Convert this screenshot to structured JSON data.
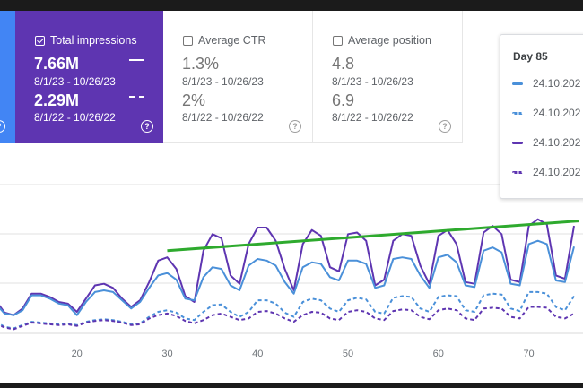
{
  "metrics": {
    "impressions": {
      "title": "Total impressions",
      "checked": true,
      "current_value": "7.66M",
      "current_range": "8/1/23 - 10/26/23",
      "previous_value": "2.29M",
      "previous_range": "8/1/22 - 10/26/22",
      "color": "#5e35b1"
    },
    "ctr": {
      "title": "Average CTR",
      "checked": false,
      "current_value": "1.3%",
      "current_range": "8/1/23 - 10/26/23",
      "previous_value": "2%",
      "previous_range": "8/1/22 - 10/26/22"
    },
    "position": {
      "title": "Average position",
      "checked": false,
      "current_value": "4.8",
      "current_range": "8/1/23 - 10/26/23",
      "previous_value": "6.9",
      "previous_range": "8/1/22 - 10/26/22"
    },
    "help_icon": "?"
  },
  "tooltip": {
    "title": "Day 85",
    "rows": [
      {
        "date": "24.10.202",
        "style": "solid",
        "color": "#4a90d9",
        "icon": "solid-line-icon"
      },
      {
        "date": "24.10.202",
        "style": "dashed",
        "color": "#4a90d9",
        "icon": "dashed-line-icon"
      },
      {
        "date": "24.10.202",
        "style": "solid",
        "color": "#5e35b1",
        "icon": "solid-line-icon"
      },
      {
        "date": "24.10.202",
        "style": "dashed",
        "color": "#5e35b1",
        "icon": "dashed-line-icon"
      }
    ]
  },
  "colors": {
    "clicks": "#4285f4",
    "impressions": "#5e35b1",
    "trend": "#2eaa2e",
    "grid": "#e0e0e0"
  },
  "chart_data": {
    "type": "line",
    "x_ticks": [
      20,
      30,
      40,
      50,
      60,
      70
    ],
    "xlim": [
      11,
      75.5
    ],
    "ylim": [
      0,
      180
    ],
    "grid": true,
    "series": [
      {
        "style": "solid",
        "color": "#5e35b1",
        "x": [
          11,
          12,
          13,
          14,
          15,
          16,
          17,
          18,
          19,
          20,
          21,
          22,
          23,
          24,
          25,
          26,
          27,
          28,
          29,
          30,
          31,
          32,
          33,
          34,
          35,
          36,
          37,
          38,
          39,
          40,
          41,
          42,
          43,
          44,
          45,
          46,
          47,
          48,
          49,
          50,
          51,
          52,
          53,
          54,
          55,
          56,
          57,
          58,
          59,
          60,
          61,
          62,
          63,
          64,
          65,
          66,
          67,
          68,
          69,
          70,
          71,
          72,
          73,
          74,
          75
        ],
        "y": [
          40,
          25,
          22,
          30,
          48,
          48,
          44,
          38,
          36,
          26,
          42,
          58,
          60,
          55,
          42,
          32,
          40,
          62,
          88,
          92,
          78,
          45,
          38,
          100,
          120,
          115,
          70,
          60,
          108,
          128,
          128,
          112,
          78,
          52,
          108,
          125,
          118,
          80,
          75,
          120,
          122,
          112,
          58,
          65,
          112,
          120,
          118,
          82,
          60,
          118,
          125,
          108,
          62,
          60,
          122,
          130,
          120,
          65,
          62,
          130,
          138,
          132,
          70,
          66,
          130
        ]
      },
      {
        "style": "solid",
        "color": "#4a90d9",
        "x": [
          11,
          12,
          13,
          14,
          15,
          16,
          17,
          18,
          19,
          20,
          21,
          22,
          23,
          24,
          25,
          26,
          27,
          28,
          29,
          30,
          31,
          32,
          33,
          34,
          35,
          36,
          37,
          38,
          39,
          40,
          41,
          42,
          43,
          44,
          45,
          46,
          47,
          48,
          49,
          50,
          51,
          52,
          53,
          54,
          55,
          56,
          57,
          58,
          59,
          60,
          61,
          62,
          63,
          64,
          65,
          66,
          67,
          68,
          69,
          70,
          71,
          72,
          73,
          74,
          75
        ],
        "y": [
          36,
          24,
          22,
          28,
          46,
          46,
          42,
          36,
          34,
          22,
          38,
          50,
          52,
          50,
          40,
          30,
          38,
          55,
          70,
          73,
          65,
          42,
          40,
          68,
          80,
          78,
          58,
          52,
          82,
          90,
          88,
          82,
          62,
          48,
          80,
          86,
          84,
          68,
          64,
          88,
          88,
          84,
          55,
          58,
          90,
          92,
          90,
          70,
          55,
          92,
          95,
          86,
          58,
          56,
          100,
          104,
          98,
          60,
          58,
          108,
          112,
          108,
          64,
          62,
          105
        ]
      },
      {
        "style": "dashed",
        "color": "#4a90d9",
        "x": [
          11,
          12,
          13,
          14,
          15,
          16,
          17,
          18,
          19,
          20,
          21,
          22,
          23,
          24,
          25,
          26,
          27,
          28,
          29,
          30,
          31,
          32,
          33,
          34,
          35,
          36,
          37,
          38,
          39,
          40,
          41,
          42,
          43,
          44,
          45,
          46,
          47,
          48,
          49,
          50,
          51,
          52,
          53,
          54,
          55,
          56,
          57,
          58,
          59,
          60,
          61,
          62,
          63,
          64,
          65,
          66,
          67,
          68,
          69,
          70,
          71,
          72,
          73,
          74,
          75
        ],
        "y": [
          14,
          8,
          6,
          10,
          14,
          13,
          12,
          11,
          12,
          10,
          14,
          16,
          17,
          16,
          14,
          11,
          12,
          20,
          26,
          28,
          25,
          18,
          16,
          26,
          34,
          35,
          26,
          20,
          26,
          40,
          40,
          36,
          25,
          20,
          38,
          42,
          40,
          30,
          26,
          40,
          43,
          41,
          26,
          24,
          43,
          45,
          44,
          30,
          26,
          44,
          46,
          45,
          28,
          26,
          46,
          48,
          47,
          30,
          27,
          50,
          50,
          48,
          32,
          28,
          45
        ]
      },
      {
        "style": "dashed",
        "color": "#5e35b1",
        "x": [
          11,
          12,
          13,
          14,
          15,
          16,
          17,
          18,
          19,
          20,
          21,
          22,
          23,
          24,
          25,
          26,
          27,
          28,
          29,
          30,
          31,
          32,
          33,
          34,
          35,
          36,
          37,
          38,
          39,
          40,
          41,
          42,
          43,
          44,
          45,
          46,
          47,
          48,
          49,
          50,
          51,
          52,
          53,
          54,
          55,
          56,
          57,
          58,
          59,
          60,
          61,
          62,
          63,
          64,
          65,
          66,
          67,
          68,
          69,
          70,
          71,
          72,
          73,
          74,
          75
        ],
        "y": [
          12,
          7,
          5,
          9,
          13,
          12,
          11,
          10,
          11,
          9,
          13,
          15,
          16,
          15,
          13,
          10,
          11,
          18,
          22,
          24,
          21,
          15,
          12,
          16,
          22,
          24,
          20,
          16,
          18,
          26,
          27,
          24,
          18,
          14,
          22,
          26,
          25,
          18,
          16,
          26,
          28,
          26,
          18,
          16,
          27,
          29,
          28,
          20,
          17,
          28,
          30,
          28,
          18,
          16,
          30,
          31,
          30,
          20,
          18,
          32,
          32,
          31,
          20,
          18,
          24
        ]
      }
    ],
    "trend": {
      "color": "#2eaa2e",
      "x": [
        30,
        75.5
      ],
      "y": [
        100,
        136
      ]
    }
  }
}
